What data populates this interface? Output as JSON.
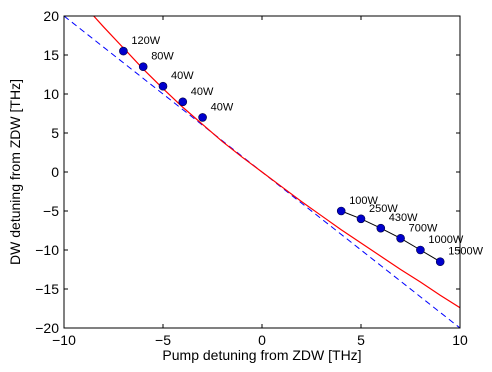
{
  "chart_data": {
    "type": "line",
    "title": "",
    "xlabel": "Pump detuning from ZDW [THz]",
    "ylabel": "DW detuning from ZDW [THz]",
    "xlim": [
      -10,
      10
    ],
    "ylim": [
      -20,
      20
    ],
    "xticks": [
      -10,
      -5,
      0,
      5,
      10
    ],
    "yticks": [
      -20,
      -15,
      -10,
      -5,
      0,
      5,
      10,
      15,
      20
    ],
    "xtick_labels": [
      "−10",
      "−5",
      "0",
      "5",
      "10"
    ],
    "ytick_labels": [
      "−20",
      "−15",
      "−10",
      "−5",
      "0",
      "5",
      "10",
      "15",
      "20"
    ],
    "grid": false,
    "legend": "none",
    "series": [
      {
        "style": "dashed",
        "color": "#0000ff",
        "x": [
          -10,
          10
        ],
        "y": [
          20,
          -20
        ]
      },
      {
        "style": "solid",
        "color": "#ff0000",
        "x": [
          -8.5,
          -8.0,
          -7.0,
          -6.0,
          -5.0,
          -4.0,
          -3.0,
          -2.0,
          -1.0,
          0.0,
          1.0,
          2.0,
          3.0,
          4.0,
          5.0,
          6.0,
          7.0,
          8.0,
          9.0,
          10.0
        ],
        "y": [
          20.0,
          18.6,
          15.9,
          13.2,
          10.7,
          8.3,
          6.1,
          3.9,
          1.9,
          0.0,
          -1.9,
          -3.8,
          -5.6,
          -7.4,
          -9.1,
          -10.8,
          -12.5,
          -14.1,
          -15.8,
          -17.4
        ]
      },
      {
        "style": "markers",
        "color": "#0000cc",
        "x": [
          -7.0,
          -6.0,
          -5.0,
          -4.0,
          -3.0
        ],
        "y": [
          15.5,
          13.5,
          11.0,
          9.0,
          7.0
        ],
        "labels": [
          "120W",
          "80W",
          "40W",
          "40W",
          "40W"
        ]
      },
      {
        "style": "line-markers",
        "color": "#000000",
        "marker_color": "#0000cc",
        "x": [
          4.0,
          5.0,
          6.0,
          7.0,
          8.0,
          9.0
        ],
        "y": [
          -5.0,
          -6.0,
          -7.2,
          -8.5,
          -10.0,
          -11.5
        ],
        "labels": [
          "100W",
          "250W",
          "430W",
          "700W",
          "1000W",
          "1500W"
        ]
      }
    ]
  }
}
